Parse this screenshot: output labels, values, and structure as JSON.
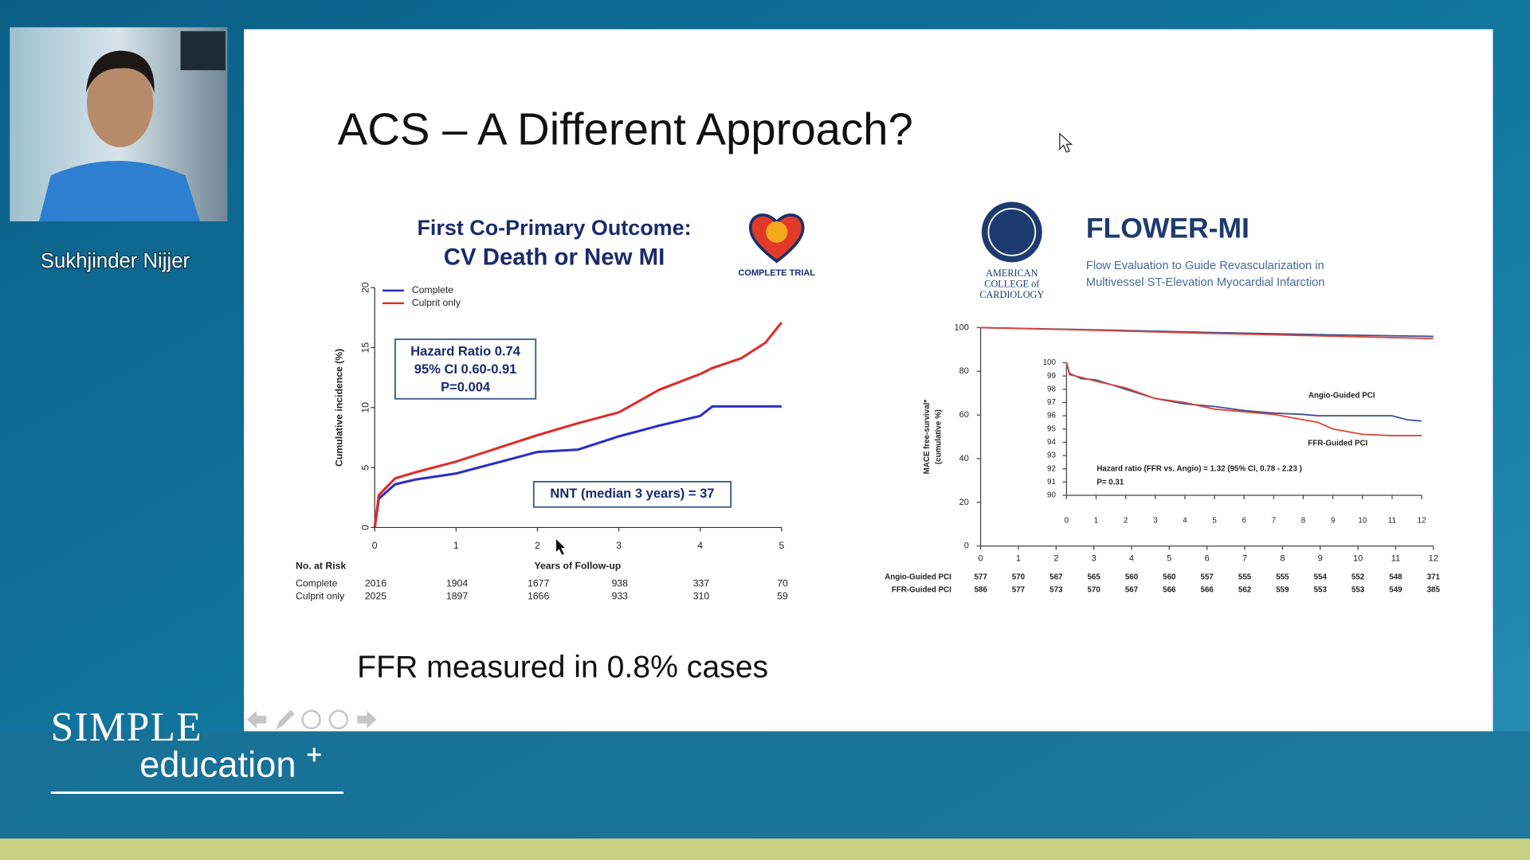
{
  "speaker": {
    "name": "Sukhjinder Nijjer"
  },
  "branding": {
    "line1": "SIMPLE",
    "line2": "education"
  },
  "slide": {
    "title": "ACS – A Different Approach?",
    "footer": "FFR measured in 0.8% cases"
  },
  "chart_data": [
    {
      "type": "line",
      "title": "First Co-Primary Outcome:",
      "subtitle": "CV Death or New MI",
      "logo_text": "COMPLETE TRIAL",
      "xlabel": "Years of Follow-up",
      "ylabel": "Cumulative incidence (%)",
      "x": [
        0,
        0.05,
        0.25,
        0.5,
        1,
        1.5,
        2,
        2.5,
        3,
        3.5,
        4,
        4.15,
        4.5,
        4.8,
        5
      ],
      "series": [
        {
          "name": "Complete",
          "color": "#2b2fc4",
          "values": [
            0,
            2.4,
            3.6,
            4.0,
            4.5,
            5.4,
            6.3,
            6.5,
            7.6,
            8.5,
            9.3,
            10.1,
            10.1,
            10.1,
            10.1
          ]
        },
        {
          "name": "Culprit only",
          "color": "#e02a2a",
          "values": [
            0,
            2.7,
            4.1,
            4.6,
            5.5,
            6.6,
            7.7,
            8.7,
            9.6,
            11.5,
            12.8,
            13.3,
            14.1,
            15.4,
            17.1
          ]
        }
      ],
      "xlim": [
        0,
        5
      ],
      "ylim": [
        0,
        20
      ],
      "xticks": [
        0,
        1,
        2,
        3,
        4,
        5
      ],
      "yticks": [
        0,
        5,
        10,
        15,
        20
      ],
      "legend": "upper left",
      "annotations": {
        "hazard": [
          "Hazard Ratio 0.74",
          "95% CI 0.60-0.91",
          "P=0.004"
        ],
        "nnt": "NNT (median 3 years) = 37"
      },
      "risk_table": {
        "title": "No. at Risk",
        "rows": [
          {
            "label": "Complete",
            "values": [
              2016,
              1904,
              1677,
              938,
              337,
              70
            ]
          },
          {
            "label": "Culprit only",
            "values": [
              2025,
              1897,
              1666,
              933,
              310,
              59
            ]
          }
        ]
      }
    },
    {
      "type": "line",
      "title": "FLOWER-MI",
      "subtitle": [
        "Flow Evaluation to Guide Revascularization in",
        "Multivessel ST-Elevation Myocardial Infarction"
      ],
      "logo_text": [
        "AMERICAN",
        "COLLEGE of",
        "CARDIOLOGY"
      ],
      "ylabel": [
        "MACE free-survival*",
        "(cumulative %)"
      ],
      "x": [
        0,
        3,
        6,
        9,
        12
      ],
      "series": [
        {
          "color": "#3f4f8c",
          "values": [
            100,
            99.0,
            97.8,
            96.8,
            96.0
          ]
        },
        {
          "color": "#d9443c",
          "values": [
            100,
            98.8,
            97.4,
            96.2,
            95.0
          ]
        }
      ],
      "xlim": [
        0,
        12
      ],
      "ylim": [
        0,
        100
      ],
      "xticks": [
        0,
        1,
        2,
        3,
        4,
        5,
        6,
        7,
        8,
        9,
        10,
        11,
        12
      ],
      "yticks": [
        0,
        20,
        40,
        60,
        80,
        100
      ],
      "risk_table": {
        "rows": [
          {
            "label": "Angio-Guided PCI",
            "values": [
              577,
              570,
              567,
              565,
              560,
              560,
              557,
              555,
              555,
              554,
              552,
              548,
              371
            ]
          },
          {
            "label": "FFR-Guided PCI",
            "values": [
              586,
              577,
              573,
              570,
              567,
              566,
              566,
              562,
              559,
              553,
              553,
              549,
              385
            ]
          }
        ]
      }
    },
    {
      "type": "line",
      "x": [
        0,
        0.1,
        0.5,
        1,
        2,
        3,
        4,
        5,
        6,
        7,
        8,
        8.5,
        9,
        10,
        11,
        11.5,
        12
      ],
      "series": [
        {
          "name": "Angio-Guided PCI",
          "color": "#3f4f8c",
          "values": [
            100,
            99.2,
            98.8,
            98.7,
            98.0,
            97.3,
            96.9,
            96.7,
            96.4,
            96.2,
            96.1,
            96.0,
            96.0,
            96.0,
            96.0,
            95.7,
            95.6
          ]
        },
        {
          "name": "FFR-Guided PCI",
          "color": "#d9443c",
          "values": [
            100,
            99.1,
            98.9,
            98.6,
            98.1,
            97.3,
            97.0,
            96.5,
            96.3,
            96.1,
            95.7,
            95.5,
            95.0,
            94.6,
            94.5,
            94.5,
            94.5
          ]
        }
      ],
      "xlim": [
        0,
        12
      ],
      "ylim": [
        90,
        100
      ],
      "xticks": [
        0,
        1,
        2,
        3,
        4,
        5,
        6,
        7,
        8,
        9,
        10,
        11,
        12
      ],
      "yticks": [
        90,
        91,
        92,
        93,
        94,
        95,
        96,
        97,
        98,
        99,
        100
      ],
      "annotations": [
        "Hazard ratio (FFR vs. Angio) = 1.32  (95% CI, 0.78 - 2.23 )",
        "P= 0.31"
      ]
    }
  ]
}
